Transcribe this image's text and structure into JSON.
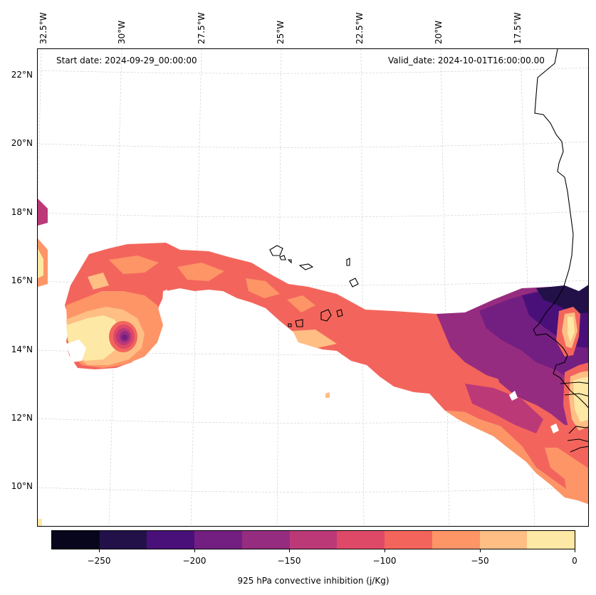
{
  "header": {
    "start_date": "Start date: 2024-09-29_00:00:00",
    "valid_date": "Valid_date: 2024-10-01T16:00:00.00"
  },
  "longitude_ticks": [
    "32.5°W",
    "30°W",
    "27.5°W",
    "25°W",
    "22.5°W",
    "20°W",
    "17.5°W"
  ],
  "latitude_ticks": [
    "22°N",
    "20°N",
    "18°N",
    "16°N",
    "14°N",
    "12°N",
    "10°N"
  ],
  "colorbar": {
    "label": "925 hPa convective inhibition (j/Kg)",
    "tick_labels": [
      "−250",
      "−200",
      "−150",
      "−100",
      "−50",
      "0"
    ],
    "range": [
      -275,
      0
    ],
    "colors": [
      "#07061c",
      "#221149",
      "#4a1079",
      "#731f81",
      "#962c80",
      "#bc3978",
      "#de4968",
      "#f3655c",
      "#fd9567",
      "#febe84",
      "#fde8a5"
    ]
  },
  "field_colors": {
    "coast": "#000000",
    "grid": "#cccccc"
  }
}
